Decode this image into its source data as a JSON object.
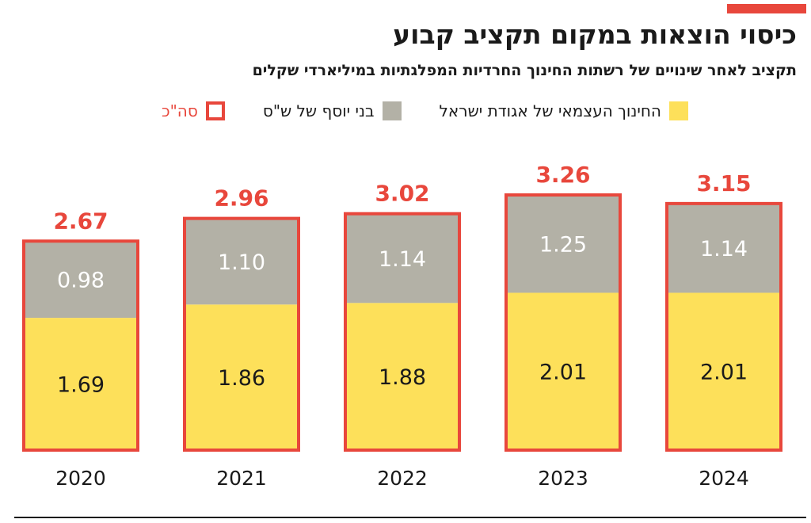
{
  "header": {
    "title": "כיסוי הוצאות במקום תקציב קבוע",
    "subtitle": "תקציב לאחר שינויים של רשתות החינוך החרדיות המפלגתיות במיליארדי שקלים"
  },
  "legend": {
    "items": [
      {
        "label": "החינוך העצמאי של אגודת ישראל",
        "color": "#fde05a"
      },
      {
        "label": "בני יוסף של ש\"ס",
        "color": "#b3b1a6"
      },
      {
        "label": "סה\"כ",
        "color": "#e8473c"
      }
    ]
  },
  "colors": {
    "accent": "#e8473c",
    "series_atzmai": "#fde05a",
    "series_bnei_yosef": "#b3b1a6"
  },
  "chart_data": {
    "type": "bar",
    "stacked": true,
    "categories": [
      "2020",
      "2021",
      "2022",
      "2023",
      "2024"
    ],
    "series": [
      {
        "name": "החינוך העצמאי של אגודת ישראל",
        "values": [
          1.69,
          1.86,
          1.88,
          2.01,
          2.01
        ]
      },
      {
        "name": "בני יוסף של ש\"ס",
        "values": [
          0.98,
          1.1,
          1.14,
          1.25,
          1.14
        ]
      }
    ],
    "totals": [
      2.67,
      2.96,
      3.02,
      3.26,
      3.15
    ],
    "value_labels": {
      "series_0": [
        "1.69",
        "1.86",
        "1.88",
        "2.01",
        "2.01"
      ],
      "series_1": [
        "0.98",
        "1.10",
        "1.14",
        "1.25",
        "1.14"
      ],
      "totals": [
        "2.67",
        "2.96",
        "3.02",
        "3.26",
        "3.15"
      ]
    },
    "ylim": [
      0,
      3.26
    ],
    "grid": false,
    "legend_position": "top"
  }
}
